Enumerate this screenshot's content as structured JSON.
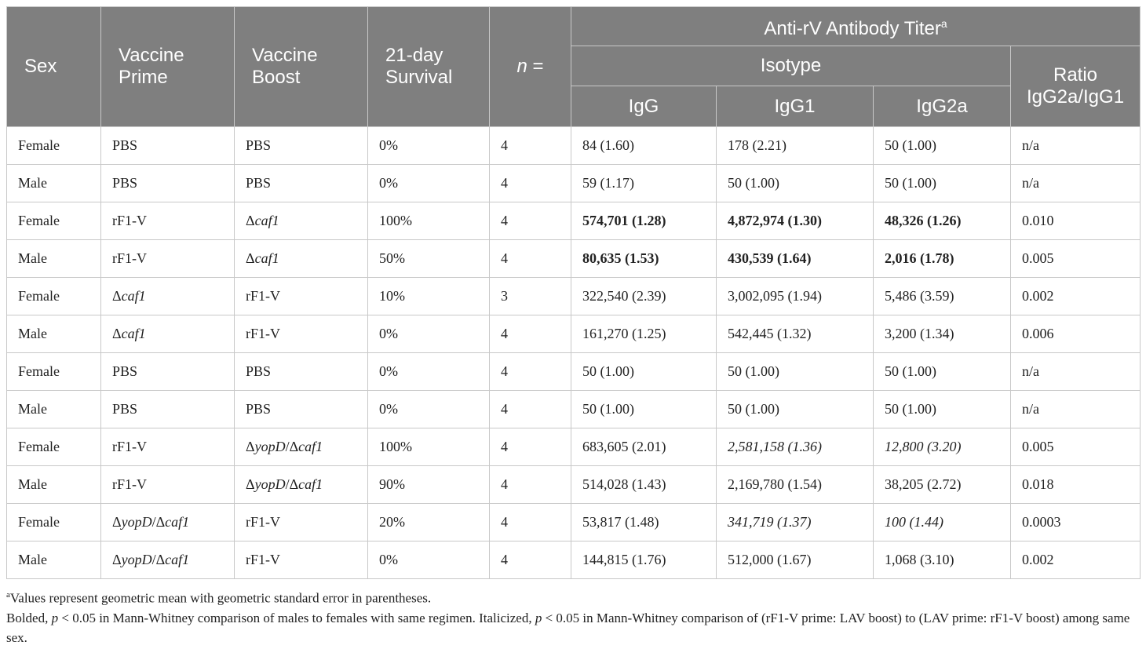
{
  "header": {
    "sex": "Sex",
    "prime": "Vaccine Prime",
    "boost": "Vaccine Boost",
    "survival": "21-day Survival",
    "n": "n =",
    "titer": "Anti-rV Antibody Titer",
    "titer_sup": "a",
    "isotype": "Isotype",
    "ratio": "Ratio IgG2a/IgG1",
    "igg": "IgG",
    "igg1": "IgG1",
    "igg2a": "IgG2a"
  },
  "rows": [
    {
      "sex": "Female",
      "prime": "PBS",
      "boost": "PBS",
      "survival": "0%",
      "n": "4",
      "igg": "84 (1.60)",
      "igg1": "178 (2.21)",
      "igg2a": "50 (1.00)",
      "ratio": "n/a"
    },
    {
      "sex": "Male",
      "prime": "PBS",
      "boost": "PBS",
      "survival": "0%",
      "n": "4",
      "igg": "59 (1.17)",
      "igg1": "50 (1.00)",
      "igg2a": "50 (1.00)",
      "ratio": "n/a"
    },
    {
      "sex": "Female",
      "prime": "rF1-V",
      "boost": "Δcaf1",
      "survival": "100%",
      "n": "4",
      "igg": "574,701 (1.28)",
      "igg1": "4,872,974 (1.30)",
      "igg2a": "48,326 (1.26)",
      "ratio": "0.010"
    },
    {
      "sex": "Male",
      "prime": "rF1-V",
      "boost": "Δcaf1",
      "survival": "50%",
      "n": "4",
      "igg": "80,635 (1.53)",
      "igg1": "430,539 (1.64)",
      "igg2a": "2,016 (1.78)",
      "ratio": "0.005"
    },
    {
      "sex": "Female",
      "prime": "Δcaf1",
      "boost": "rF1-V",
      "survival": "10%",
      "n": "3",
      "igg": "322,540 (2.39)",
      "igg1": "3,002,095 (1.94)",
      "igg2a": "5,486 (3.59)",
      "ratio": "0.002"
    },
    {
      "sex": "Male",
      "prime": "Δcaf1",
      "boost": "rF1-V",
      "survival": "0%",
      "n": "4",
      "igg": "161,270 (1.25)",
      "igg1": "542,445 (1.32)",
      "igg2a": "3,200 (1.34)",
      "ratio": "0.006"
    },
    {
      "sex": "Female",
      "prime": "PBS",
      "boost": "PBS",
      "survival": "0%",
      "n": "4",
      "igg": "50 (1.00)",
      "igg1": "50 (1.00)",
      "igg2a": "50 (1.00)",
      "ratio": "n/a"
    },
    {
      "sex": "Male",
      "prime": "PBS",
      "boost": "PBS",
      "survival": "0%",
      "n": "4",
      "igg": "50 (1.00)",
      "igg1": "50 (1.00)",
      "igg2a": "50 (1.00)",
      "ratio": "n/a"
    },
    {
      "sex": "Female",
      "prime": "rF1-V",
      "boost": "ΔyopD/Δcaf1",
      "survival": "100%",
      "n": "4",
      "igg": "683,605 (2.01)",
      "igg1": "2,581,158 (1.36)",
      "igg2a": "12,800 (3.20)",
      "ratio": "0.005"
    },
    {
      "sex": "Male",
      "prime": "rF1-V",
      "boost": "ΔyopD/Δcaf1",
      "survival": "90%",
      "n": "4",
      "igg": "514,028 (1.43)",
      "igg1": "2,169,780 (1.54)",
      "igg2a": "38,205 (2.72)",
      "ratio": "0.018"
    },
    {
      "sex": "Female",
      "prime": "ΔyopD/Δcaf1",
      "boost": "rF1-V",
      "survival": "20%",
      "n": "4",
      "igg": "53,817 (1.48)",
      "igg1": "341,719 (1.37)",
      "igg2a": "100 (1.44)",
      "ratio": "0.0003"
    },
    {
      "sex": "Male",
      "prime": "ΔyopD/Δcaf1",
      "boost": "rF1-V",
      "survival": "0%",
      "n": "4",
      "igg": "144,815 (1.76)",
      "igg1": "512,000 (1.67)",
      "igg2a": "1,068 (3.10)",
      "ratio": "0.002"
    }
  ],
  "footnotes": {
    "a_mark": "a",
    "a_text": "Values represent geometric mean with geometric standard error in parentheses.",
    "line2_a": "Bolded, ",
    "p1": "p",
    "line2_b": " < 0.05 in Mann-Whitney comparison of males to females with same regimen. Italicized, ",
    "p2": "p",
    "line2_c": " < 0.05 in Mann-Whitney comparison of (rF1-V prime: LAV boost) to (LAV prime: rF1-V boost) among same sex."
  }
}
